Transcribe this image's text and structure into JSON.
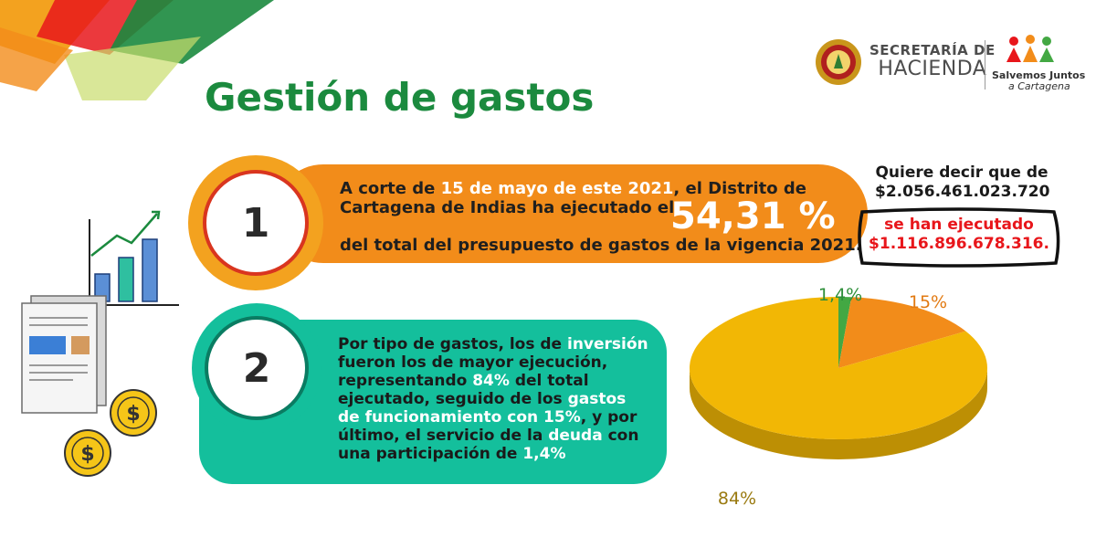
{
  "header": {
    "entity_line1": "SECRETARÍA DE",
    "entity_line2": "HACIENDA",
    "campaign_line1": "Salvemos Juntos",
    "campaign_line2": "a Cartagena"
  },
  "title": "Gestión de gastos",
  "panel1": {
    "badge": "1",
    "line1_a": "A corte de ",
    "line1_hl": "15 de mayo de este 2021",
    "line1_b": ", el Distrito de",
    "line2": "Cartagena de Indias ha ejecutado el",
    "percent": "54,31 %",
    "line3": "del total del presupuesto de gastos de la vigencia 2021."
  },
  "notes": {
    "line1": "Quiere decir que de",
    "line2": "$2.056.461.023.720",
    "red_line1": "se han ejecutado",
    "red_line2": "$1.116.896.678.316."
  },
  "panel2": {
    "badge": "2",
    "l1_a": "Por tipo de gastos, los de ",
    "l1_hl": "inversión",
    "l2": "fueron los de mayor ejecución,",
    "l3_a": "representando ",
    "l3_hl": "84%",
    "l3_b": " del total",
    "l4_a": "ejecutado, seguido de los ",
    "l4_hl": "gastos",
    "l5_hl": "de funcionamiento con 15%",
    "l5_b": ", y por",
    "l6_a": "último, el servicio de la ",
    "l6_hl": "deuda",
    "l6_b": " con",
    "l7_a": "una participación de ",
    "l7_hl": "1,4%"
  },
  "colors": {
    "title_green": "#1b8a3e",
    "orange": "#f28c1a",
    "teal": "#14bf9c",
    "red": "#e8161b",
    "pie_yellow": "#f2b705",
    "pie_orange": "#f28c1a",
    "pie_green": "#43a843"
  },
  "icons": [
    "city-seal-icon",
    "salvemos-juntos-logo-icon",
    "growth-chart-icon",
    "document-icon",
    "dollar-coin-icon"
  ],
  "chart_data": {
    "type": "pie",
    "slices": [
      {
        "label": "84%",
        "value": 84,
        "color": "#f2b705"
      },
      {
        "label": "15%",
        "value": 15,
        "color": "#f28c1a"
      },
      {
        "label": "1,4%",
        "value": 1.4,
        "color": "#43a843"
      }
    ],
    "legend": "none"
  }
}
